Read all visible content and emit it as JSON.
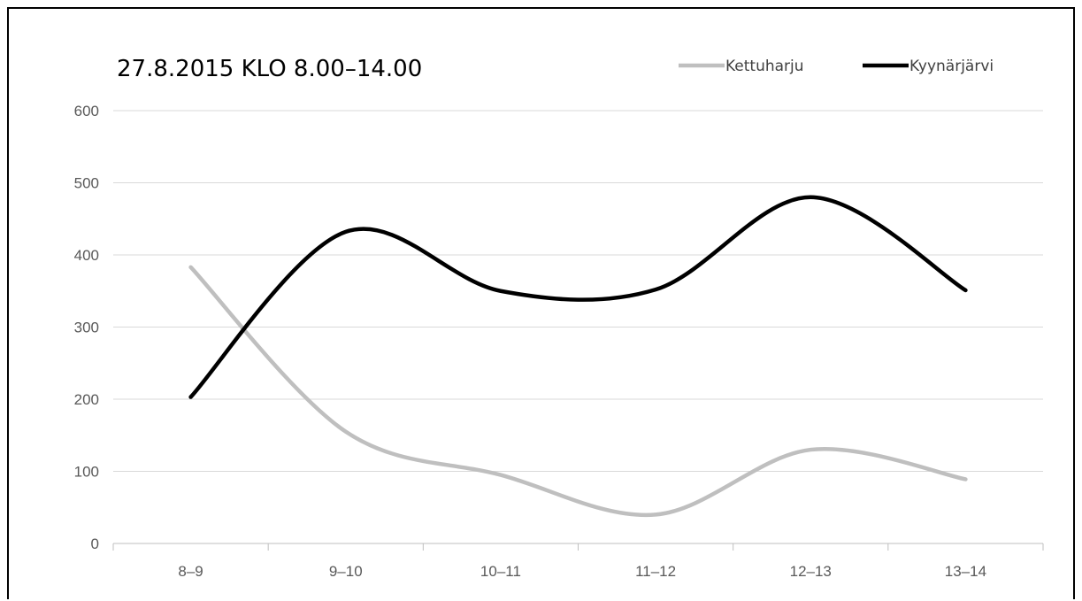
{
  "chart_data": {
    "type": "line",
    "title": "27.8.2015 KLO 8.00–14.00",
    "categories": [
      "8–9",
      "9–10",
      "10–11",
      "11–12",
      "12–13",
      "13–14"
    ],
    "series": [
      {
        "name": "Kettuharju",
        "values": [
          383,
          155,
          95,
          40,
          130,
          89
        ],
        "color": "#bfbfbf"
      },
      {
        "name": "Kyynärjärvi",
        "values": [
          203,
          432,
          350,
          352,
          480,
          351
        ],
        "color": "#000000"
      }
    ],
    "ylim": [
      0,
      600
    ],
    "yticks": [
      0,
      100,
      200,
      300,
      400,
      500,
      600
    ],
    "xlabel": "",
    "ylabel": "",
    "grid": true,
    "smooth": true,
    "legend_position": "top-right"
  }
}
